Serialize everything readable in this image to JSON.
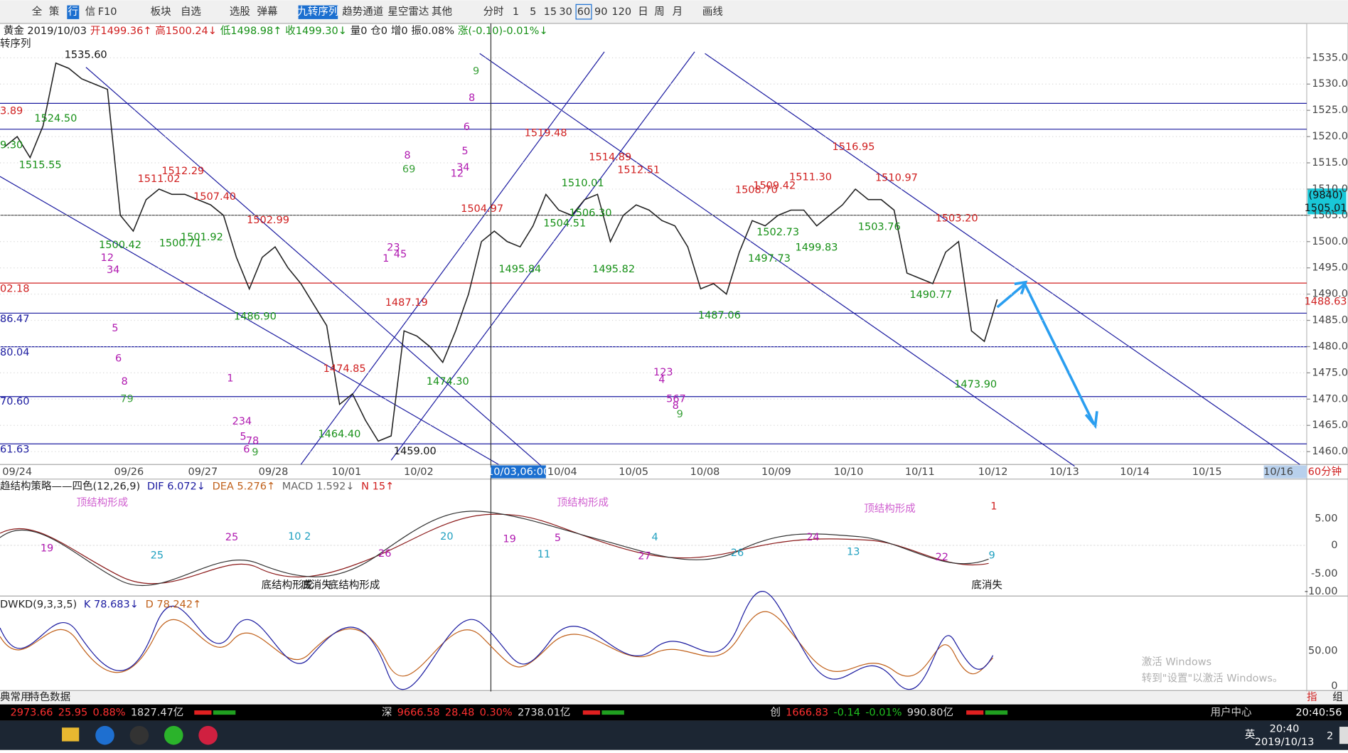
{
  "toolbar": [
    "全",
    "策",
    "行",
    "信",
    "F10",
    "板块",
    "自选",
    "选股",
    "弹幕",
    "九转序列",
    "趋势通道",
    "星空雷达",
    "其他",
    "分时",
    "1",
    "5",
    "15",
    "30",
    "60",
    "90",
    "120",
    "日",
    "周",
    "月",
    "画线"
  ],
  "header": {
    "quote": [
      "黄金 2019/10/03",
      "开1499.36↑",
      "高1500.24↓",
      "低1498.98↑",
      "收1499.30↓",
      "量0",
      "仓0",
      "增0",
      "振0.08%",
      "涨(-0.10)-0.01%↓"
    ],
    "indicator": "转序列"
  },
  "chart_data": {
    "type": "line",
    "color": "#222222",
    "values": [
      1518,
      1520,
      1516,
      1522,
      1534,
      1533,
      1531,
      1530,
      1529,
      1505,
      1502,
      1508,
      1510,
      1509,
      1509,
      1508,
      1507,
      1505,
      1497,
      1491,
      1497,
      1499,
      1495,
      1492,
      1488,
      1484,
      1469,
      1471,
      1466,
      1462,
      1463,
      1483,
      1482,
      1480,
      1477,
      1483,
      1490,
      1500,
      1502,
      1500,
      1499,
      1503,
      1509,
      1506,
      1505,
      1508,
      1509,
      1500,
      1505,
      1507,
      1506,
      1504,
      1503,
      1499,
      1491,
      1492,
      1490,
      1498,
      1504,
      1503,
      1505,
      1506,
      1506,
      1503,
      1505,
      1507,
      1510,
      1508,
      1508,
      1506,
      1494,
      1493,
      1492,
      1498,
      1500,
      1483,
      1481,
      1489
    ],
    "ylim": [
      1457.55,
      1541.39
    ],
    "yticks": [
      {
        "value": 1460,
        "label": "1460.00"
      },
      {
        "value": 1465,
        "label": "1465.00"
      },
      {
        "value": 1470,
        "label": "1470.00"
      },
      {
        "value": 1475,
        "label": "1475.00"
      },
      {
        "value": 1480,
        "label": "1480.00"
      },
      {
        "value": 1485,
        "label": "1485.00"
      },
      {
        "value": 1490,
        "label": "1490.00"
      },
      {
        "value": 1495,
        "label": "1495.00"
      },
      {
        "value": 1500,
        "label": "1500.00"
      },
      {
        "value": 1505,
        "label": "1505.00"
      },
      {
        "value": 1510,
        "label": "1510.00"
      },
      {
        "value": 1515,
        "label": "1515.00"
      },
      {
        "value": 1520,
        "label": "1520.00"
      },
      {
        "value": 1525,
        "label": "1525.00"
      },
      {
        "value": 1530,
        "label": "1530.00"
      },
      {
        "value": 1535,
        "label": "1535.00"
      }
    ],
    "grid": true,
    "x_labels": [
      "09/24",
      "09/26",
      "09/27",
      "09/28",
      "10/01",
      "10/02",
      "10/04",
      "10/05",
      "10/08",
      "10/09",
      "10/10",
      "10/11",
      "10/12",
      "10/13",
      "10/14",
      "10/15",
      "10/16"
    ],
    "cursor_label": "10/03,06:00",
    "period": "60分钟",
    "price_labels": [
      "1535.60",
      "1524.50",
      "1515.55",
      "1511.02",
      "1512.29",
      "1507.40",
      "1500.42",
      "1500.71",
      "1501.92",
      "1502.99",
      "1486.90",
      "1474.85",
      "1464.40",
      "1459.00",
      "1487.19",
      "1474.30",
      "1504.97",
      "1519.48",
      "1495.84",
      "1504.51",
      "1506.30",
      "1510.01",
      "1514.89",
      "1512.51",
      "1495.82",
      "1487.06",
      "1508.70",
      "1509.42",
      "1511.30",
      "1502.73",
      "1497.73",
      "1499.83",
      "1516.95",
      "1510.97",
      "1503.76",
      "1503.20",
      "1490.77",
      "1473.90"
    ],
    "left_labels": [
      "3.89",
      "9.30",
      "02.18",
      "86.47",
      "80.04",
      "70.60",
      "61.63"
    ],
    "nine_sequence": [
      "9",
      "8",
      "6",
      "5",
      "34",
      "12",
      "8",
      "69",
      "23",
      "45",
      "1",
      "12",
      "34",
      "5",
      "6",
      "8",
      "79",
      "1",
      "234",
      "5",
      "78",
      "6",
      "9",
      "123",
      "4",
      "567",
      "8",
      "9"
    ],
    "boxes": [
      "(9840)",
      "1505.01",
      "1488.63"
    ]
  },
  "macd": {
    "title": "趋结构策略——四色(12,26,9)",
    "dif": "DIF 6.072↓",
    "dea": "DEA 5.276↑",
    "macd": "MACD 1.592↓",
    "n": "N 15↑",
    "signal": "1",
    "notes": [
      "顶结构形成",
      "顶结构形成",
      "顶结构形成",
      "底结构形成",
      "底消失",
      "底结构形成",
      "底消失"
    ],
    "counts": [
      "19",
      "25",
      "25",
      "10 2",
      "26",
      "20",
      "19",
      "11",
      "5",
      "4",
      "27",
      "26",
      "24",
      "13",
      "22",
      "9"
    ],
    "ticks": [
      "5.00",
      "0",
      "-5.00",
      "-10.00"
    ]
  },
  "kdj": {
    "title": "DWKD(9,3,3,5)",
    "k": "K 78.683↓",
    "d": "D 78.242↑",
    "ticks": [
      "50.00",
      "0"
    ]
  },
  "tabs": [
    "典常用",
    "特色数据"
  ],
  "status": {
    "sh": [
      "2973.66",
      "25.95",
      "0.88%",
      "1827.47亿"
    ],
    "sz": [
      "深",
      "9666.58",
      "28.48",
      "0.30%",
      "2738.01亿"
    ],
    "cy": [
      "创",
      "1666.83",
      "-0.14",
      "-0.01%",
      "990.80亿"
    ],
    "user_center": "用户中心",
    "time": "20:40:56",
    "corner": [
      "指",
      "组"
    ]
  },
  "watermark": [
    "激活 Windows",
    "转到\"设置\"以激活 Windows。"
  ],
  "taskbar": {
    "ime": "英",
    "time": "20:40",
    "date": "2019/10/13",
    "badge": "2"
  }
}
